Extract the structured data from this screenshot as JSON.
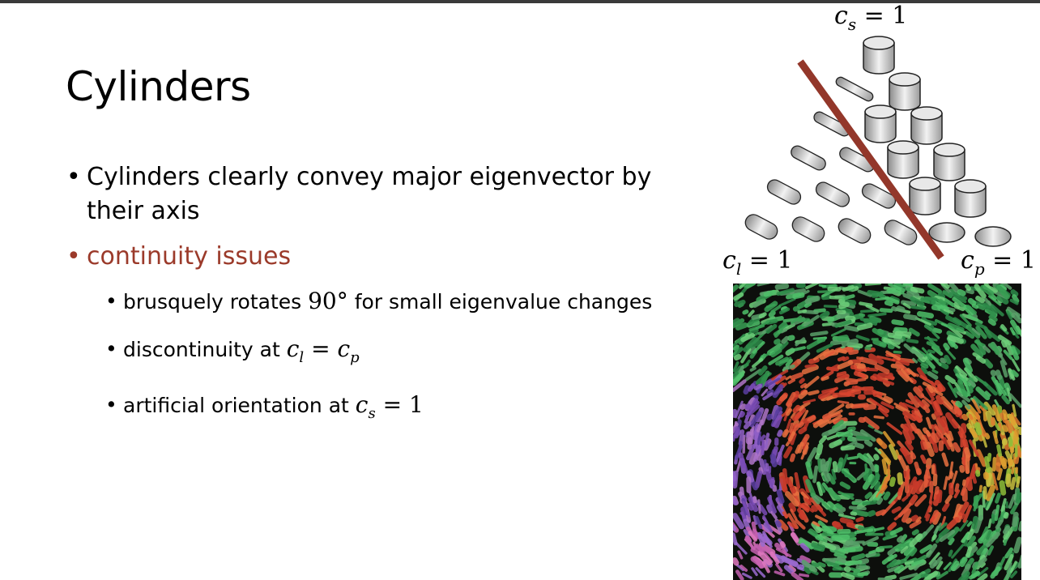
{
  "slide": {
    "title": "Cylinders",
    "bullets": [
      {
        "text": "Cylinders clearly convey major eigenvector by their axis"
      },
      {
        "text": "continuity issues",
        "sub": [
          {
            "before": "brusquely rotates ",
            "math": "90°",
            "after": " for small eigenvalue changes"
          },
          {
            "before": "discontinuity at ",
            "math_a": "c",
            "sub_a": "l",
            "op": " = ",
            "math_b": "c",
            "sub_b": "p"
          },
          {
            "before": "artificial orientation at ",
            "math_a": "c",
            "sub_a": "s",
            "op": " = ",
            "val": "1"
          }
        ]
      }
    ]
  },
  "diagram": {
    "label_top": {
      "var": "c",
      "sub": "s",
      "eq": " = 1"
    },
    "label_left": {
      "var": "c",
      "sub": "l",
      "eq": " = 1"
    },
    "label_right": {
      "var": "c",
      "sub": "p",
      "eq": " = 1"
    },
    "line_color": "#93372a",
    "glyph_color": "#d6d6d6"
  },
  "colors": {
    "accent": "#9b3a2a",
    "topbar": "#3a3a3a"
  }
}
